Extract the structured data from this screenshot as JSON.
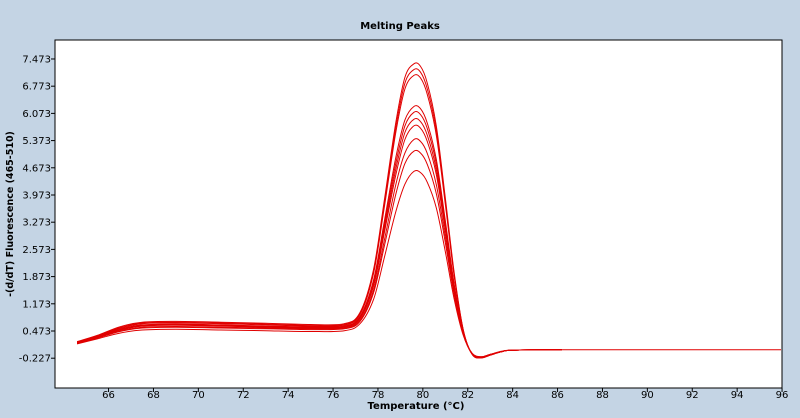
{
  "colors": {
    "background": "#c4d4e4",
    "plot_background": "#ffffff",
    "axis": "#000000",
    "series": "#e00000"
  },
  "chart_data": {
    "type": "line",
    "title": "Melting Peaks",
    "xlabel": "Temperature (°C)",
    "ylabel": "-(d/dT) Fluorescence (465-510)",
    "xlim": [
      64.6,
      96.8
    ],
    "ylim": [
      -0.6,
      8.0
    ],
    "x_ticks": [
      "66",
      "68",
      "70",
      "72",
      "74",
      "76",
      "78",
      "80",
      "82",
      "84",
      "86",
      "88",
      "90",
      "92",
      "94",
      "96"
    ],
    "y_ticks": [
      "7.473",
      "6.773",
      "6.073",
      "5.373",
      "4.673",
      "3.973",
      "3.273",
      "2.573",
      "1.873",
      "1.173",
      "0.473",
      "-0.227"
    ],
    "grid": false,
    "legend": "none",
    "x": [
      64.6,
      65.5,
      66.5,
      67.5,
      69.0,
      71.0,
      73.0,
      75.0,
      76.5,
      77.2,
      77.8,
      78.3,
      78.8,
      79.2,
      79.6,
      79.9,
      80.2,
      80.6,
      81.0,
      81.4,
      81.8,
      82.2,
      82.6,
      83.0,
      83.5,
      84.0,
      86.2
    ],
    "series": [
      {
        "values": [
          0.2,
          0.36,
          0.58,
          0.7,
          0.72,
          0.7,
          0.67,
          0.64,
          0.66,
          0.95,
          2.05,
          3.9,
          5.85,
          7.0,
          7.35,
          7.28,
          6.85,
          5.75,
          3.9,
          1.95,
          0.5,
          -0.13,
          -0.22,
          -0.15,
          -0.06,
          -0.02,
          -0.01
        ]
      },
      {
        "values": [
          0.19,
          0.35,
          0.56,
          0.68,
          0.7,
          0.68,
          0.65,
          0.62,
          0.64,
          0.92,
          1.98,
          3.8,
          5.72,
          6.85,
          7.2,
          7.13,
          6.7,
          5.63,
          3.82,
          1.9,
          0.49,
          -0.13,
          -0.22,
          -0.15,
          -0.06,
          -0.02,
          -0.01
        ]
      },
      {
        "values": [
          0.18,
          0.34,
          0.54,
          0.66,
          0.68,
          0.66,
          0.63,
          0.6,
          0.62,
          0.9,
          1.95,
          3.72,
          5.6,
          6.7,
          7.05,
          6.98,
          6.56,
          5.51,
          3.74,
          1.86,
          0.48,
          -0.13,
          -0.21,
          -0.15,
          -0.06,
          -0.02,
          -0.01
        ]
      },
      {
        "values": [
          0.17,
          0.33,
          0.52,
          0.63,
          0.65,
          0.63,
          0.6,
          0.58,
          0.6,
          0.85,
          1.78,
          3.35,
          4.95,
          5.9,
          6.25,
          6.19,
          5.82,
          4.89,
          3.32,
          1.66,
          0.44,
          -0.12,
          -0.21,
          -0.14,
          -0.06,
          -0.02,
          -0.01
        ]
      },
      {
        "values": [
          0.17,
          0.32,
          0.51,
          0.62,
          0.64,
          0.62,
          0.59,
          0.57,
          0.59,
          0.83,
          1.74,
          3.25,
          4.8,
          5.75,
          6.1,
          6.04,
          5.68,
          4.77,
          3.24,
          1.62,
          0.43,
          -0.12,
          -0.21,
          -0.14,
          -0.06,
          -0.02,
          -0.01
        ]
      },
      {
        "values": [
          0.16,
          0.32,
          0.5,
          0.61,
          0.63,
          0.61,
          0.58,
          0.56,
          0.58,
          0.81,
          1.68,
          3.15,
          4.65,
          5.58,
          5.92,
          5.86,
          5.51,
          4.63,
          3.15,
          1.58,
          0.42,
          -0.12,
          -0.2,
          -0.14,
          -0.06,
          -0.02,
          -0.01
        ]
      },
      {
        "values": [
          0.16,
          0.31,
          0.49,
          0.6,
          0.62,
          0.6,
          0.57,
          0.55,
          0.57,
          0.79,
          1.62,
          3.05,
          4.5,
          5.4,
          5.75,
          5.69,
          5.35,
          4.5,
          3.06,
          1.54,
          0.41,
          -0.12,
          -0.2,
          -0.14,
          -0.06,
          -0.02,
          -0.01
        ]
      },
      {
        "values": [
          0.15,
          0.3,
          0.47,
          0.57,
          0.59,
          0.57,
          0.55,
          0.53,
          0.55,
          0.75,
          1.52,
          2.85,
          4.25,
          5.05,
          5.4,
          5.35,
          5.04,
          4.24,
          2.9,
          1.46,
          0.39,
          -0.11,
          -0.2,
          -0.13,
          -0.06,
          -0.02,
          -0.01
        ]
      },
      {
        "values": [
          0.15,
          0.29,
          0.46,
          0.55,
          0.57,
          0.55,
          0.53,
          0.51,
          0.53,
          0.72,
          1.45,
          2.7,
          4.0,
          4.78,
          5.1,
          5.05,
          4.76,
          4.01,
          2.75,
          1.39,
          0.38,
          -0.11,
          -0.19,
          -0.13,
          -0.06,
          -0.02,
          -0.01
        ]
      },
      {
        "values": [
          0.14,
          0.27,
          0.42,
          0.5,
          0.52,
          0.5,
          0.48,
          0.46,
          0.48,
          0.66,
          1.28,
          2.4,
          3.55,
          4.25,
          4.58,
          4.55,
          4.3,
          3.64,
          2.52,
          1.28,
          0.36,
          -0.1,
          -0.19,
          -0.13,
          -0.05,
          -0.02,
          -0.01
        ]
      }
    ]
  }
}
